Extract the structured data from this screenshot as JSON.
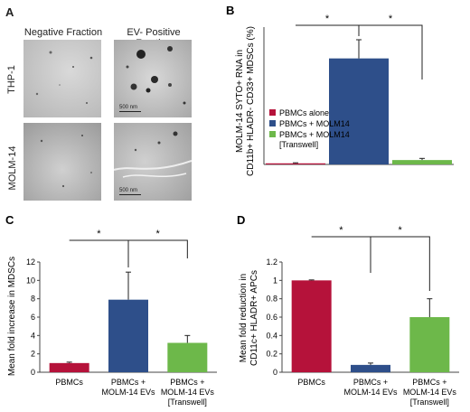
{
  "panelA": {
    "letter": "A",
    "col_neg": "Negative Fraction",
    "col_pos": "EV- Positive Fraction",
    "row_thp": "THP-1",
    "row_molm": "MOLM-14",
    "scale_thp": "500 nm",
    "scale_molm": "500 nm"
  },
  "chart_data": [
    {
      "panel": "B",
      "type": "bar",
      "ylabel": "MOLM-14 SYTO+ RNA in CD11b+ HLADR- CD33+ MDSCs (%)",
      "ylim": [
        0,
        25
      ],
      "yticks": [],
      "categories": [
        "PBMCs alone",
        "PBMCs + MOLM14",
        "PBMCs + MOLM14 [Transwell]"
      ],
      "values": [
        0.2,
        19.3,
        0.8
      ],
      "errors": [
        0.1,
        3.4,
        0.3
      ],
      "colors": [
        "#b5123a",
        "#2e4f8a",
        "#6db84a"
      ],
      "legend": [
        "PBMCs alone",
        "PBMCs + MOLM14",
        "PBMCs + MOLM14",
        "[Transwell]"
      ],
      "significance": [
        "*",
        "*"
      ]
    },
    {
      "panel": "C",
      "type": "bar",
      "ylabel": "Mean fold increase in MDSCs",
      "ylim": [
        0,
        12
      ],
      "yticks": [
        "0",
        "2",
        "4",
        "6",
        "8",
        "10",
        "12"
      ],
      "categories": [
        "PBMCs",
        "PBMCs + MOLM-14 EVs",
        "PBMCs + MOLM-14 EVs [Transwell]"
      ],
      "xticklabels": [
        [
          "PBMCs"
        ],
        [
          "PBMCs +",
          "MOLM-14 EVs"
        ],
        [
          "PBMCs +",
          "MOLM-14 EVs",
          "[Transwell]"
        ]
      ],
      "values": [
        1.0,
        7.9,
        3.2
      ],
      "errors": [
        0.1,
        3.0,
        0.8
      ],
      "colors": [
        "#b5123a",
        "#2e4f8a",
        "#6db84a"
      ],
      "significance": [
        "*",
        "*"
      ]
    },
    {
      "panel": "D",
      "type": "bar",
      "ylabel": "Mean fold reduction in CD11c+ HLADR+ APCs",
      "ylim": [
        0,
        1.2
      ],
      "yticks": [
        "0",
        "0.2",
        "0.4",
        "0.6",
        "0.8",
        "1",
        "1.2"
      ],
      "categories": [
        "PBMCs",
        "PBMCs + MOLM-14 EVs",
        "PBMCs + MOLM-14 EVs [Transwell]"
      ],
      "xticklabels": [
        [
          "PBMCs"
        ],
        [
          "PBMCs +",
          "MOLM-14 EVs"
        ],
        [
          "PBMCs +",
          "MOLM-14 EVs",
          "[Transwell]"
        ]
      ],
      "values": [
        1.0,
        0.08,
        0.6
      ],
      "errors": [
        0.005,
        0.02,
        0.2
      ],
      "colors": [
        "#b5123a",
        "#2e4f8a",
        "#6db84a"
      ],
      "significance": [
        "*",
        "*"
      ]
    }
  ]
}
